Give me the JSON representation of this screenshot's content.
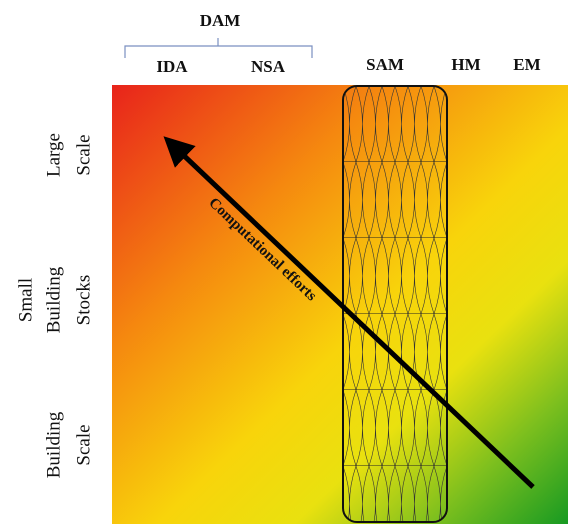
{
  "header": {
    "group": "DAM",
    "columns": [
      "IDA",
      "NSA",
      "SAM",
      "HM",
      "EM"
    ]
  },
  "rows": [
    [
      "Large",
      "Scale"
    ],
    [
      "Small",
      "Building",
      "Stocks"
    ],
    [
      "Building",
      "Scale"
    ]
  ],
  "arrow": {
    "label": "Computational efforts"
  }
}
